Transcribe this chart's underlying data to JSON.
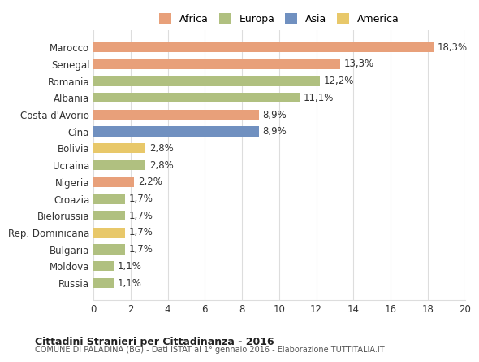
{
  "categories": [
    "Russia",
    "Moldova",
    "Bulgaria",
    "Rep. Dominicana",
    "Bielorussia",
    "Croazia",
    "Nigeria",
    "Ucraina",
    "Bolivia",
    "Cina",
    "Costa d'Avorio",
    "Albania",
    "Romania",
    "Senegal",
    "Marocco"
  ],
  "values": [
    1.1,
    1.1,
    1.7,
    1.7,
    1.7,
    1.7,
    2.2,
    2.8,
    2.8,
    8.9,
    8.9,
    11.1,
    12.2,
    13.3,
    18.3
  ],
  "labels": [
    "1,1%",
    "1,1%",
    "1,7%",
    "1,7%",
    "1,7%",
    "1,7%",
    "2,2%",
    "2,8%",
    "2,8%",
    "8,9%",
    "8,9%",
    "11,1%",
    "12,2%",
    "13,3%",
    "18,3%"
  ],
  "colors": [
    "#b0c080",
    "#b0c080",
    "#b0c080",
    "#e8c86a",
    "#b0c080",
    "#b0c080",
    "#e8a07a",
    "#b0c080",
    "#e8c86a",
    "#7090c0",
    "#e8a07a",
    "#b0c080",
    "#b0c080",
    "#e8a07a",
    "#e8a07a"
  ],
  "continent": [
    "Europa",
    "Europa",
    "Europa",
    "America",
    "Europa",
    "Europa",
    "Africa",
    "Europa",
    "America",
    "Asia",
    "Africa",
    "Europa",
    "Europa",
    "Africa",
    "Africa"
  ],
  "legend_labels": [
    "Africa",
    "Europa",
    "Asia",
    "America"
  ],
  "legend_colors": [
    "#e8a07a",
    "#b0c080",
    "#7090c0",
    "#e8c86a"
  ],
  "title1": "Cittadini Stranieri per Cittadinanza - 2016",
  "title2": "COMUNE DI PALADINA (BG) - Dati ISTAT al 1° gennaio 2016 - Elaborazione TUTTITALIA.IT",
  "xlim": [
    0,
    20
  ],
  "xticks": [
    0,
    2,
    4,
    6,
    8,
    10,
    12,
    14,
    16,
    18,
    20
  ],
  "bar_height": 0.6,
  "background_color": "#ffffff",
  "grid_color": "#dddddd",
  "label_fontsize": 8.5,
  "tick_fontsize": 8.5
}
